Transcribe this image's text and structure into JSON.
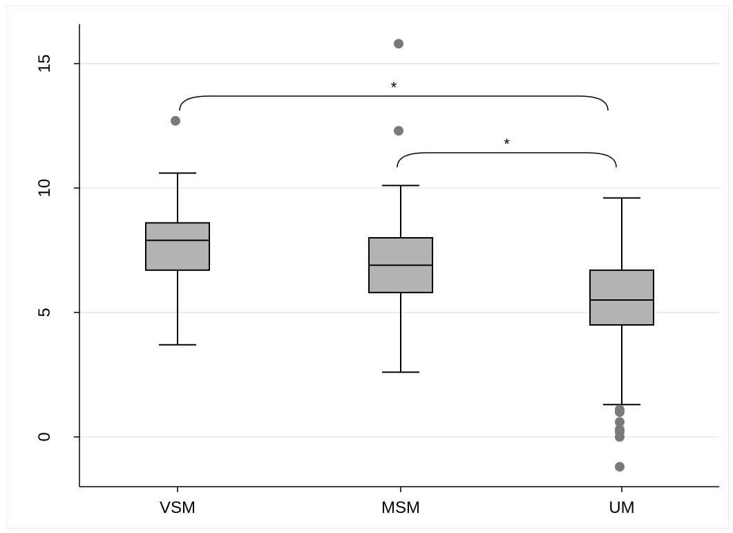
{
  "chart_data": {
    "type": "box",
    "title": "",
    "xlabel": "",
    "ylabel": "",
    "ylim": [
      -1.7,
      16.5
    ],
    "yticks": [
      0,
      5,
      10,
      15
    ],
    "grid": true,
    "categories": [
      "VSM",
      "MSM",
      "UM"
    ],
    "boxes": [
      {
        "category": "VSM",
        "whisker_low": 3.7,
        "q1": 6.7,
        "median": 7.9,
        "q3": 8.6,
        "whisker_high": 10.6,
        "outliers": [
          12.7
        ]
      },
      {
        "category": "MSM",
        "whisker_low": 2.6,
        "q1": 5.8,
        "median": 6.9,
        "q3": 8.0,
        "whisker_high": 10.1,
        "outliers": [
          12.3,
          15.8
        ]
      },
      {
        "category": "UM",
        "whisker_low": 1.3,
        "q1": 4.5,
        "median": 5.5,
        "q3": 6.7,
        "whisker_high": 9.6,
        "outliers": [
          1.1,
          1.0,
          0.6,
          0.3,
          0.2,
          0.0,
          -1.2
        ]
      }
    ],
    "significance": [
      {
        "from": "VSM",
        "to": "UM",
        "label": "*"
      },
      {
        "from": "MSM",
        "to": "UM",
        "label": "*"
      }
    ],
    "colors": {
      "box_fill": "#b3b3b3",
      "outline": "#000000",
      "outlier": "#7a7a7a",
      "grid": "#e6efef"
    }
  }
}
